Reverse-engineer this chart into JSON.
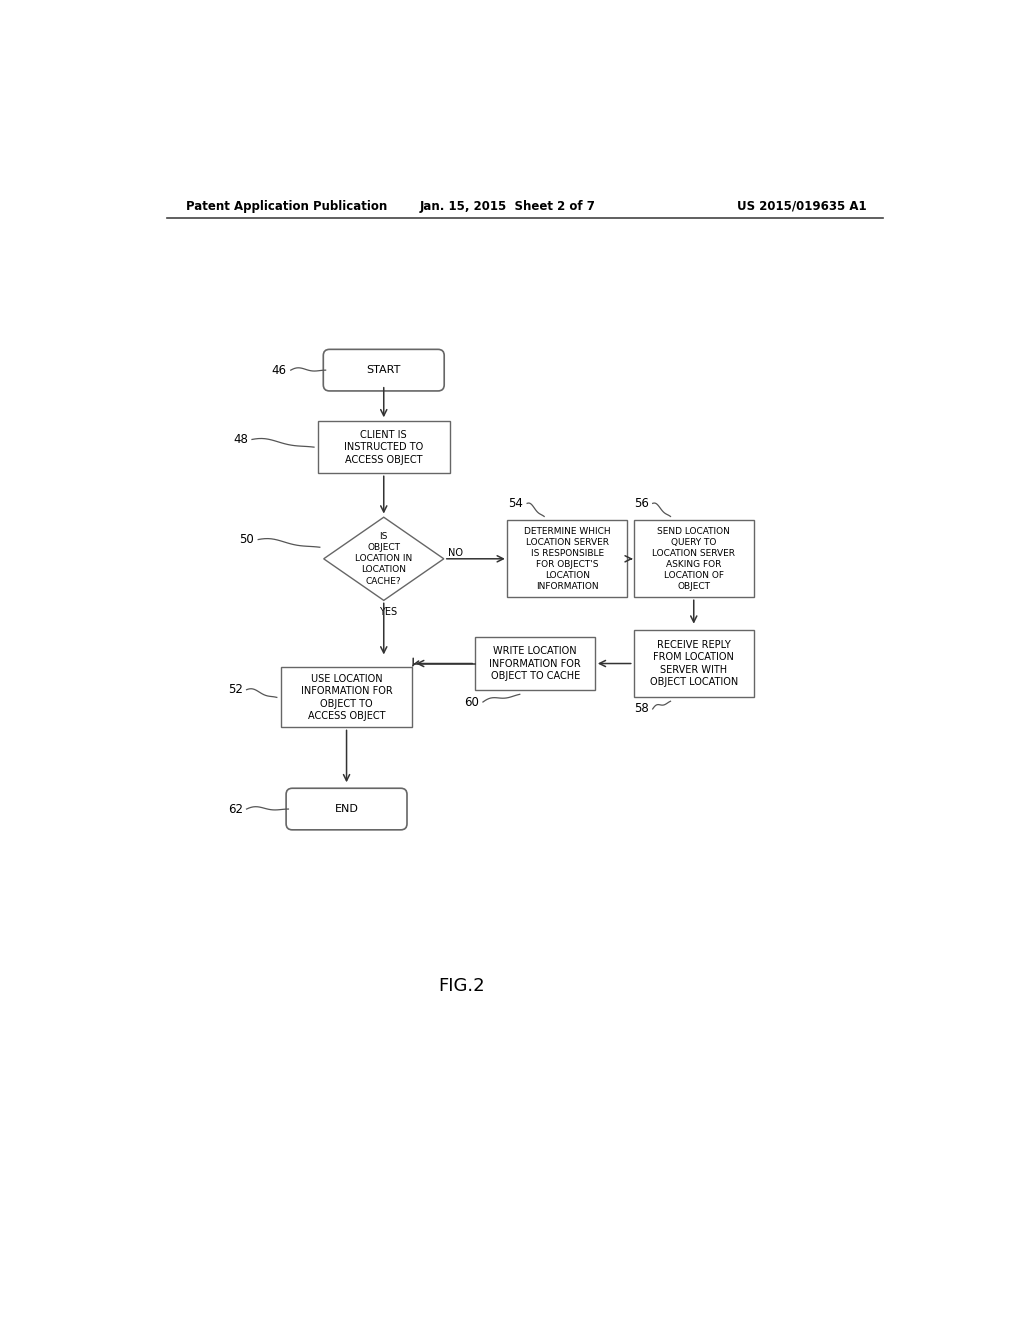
{
  "bg_color": "#ffffff",
  "text_color": "#000000",
  "border_color": "#666666",
  "header_left": "Patent Application Publication",
  "header_center": "Jan. 15, 2015  Sheet 2 of 7",
  "header_right": "US 2015/019635 A1",
  "fig_label": "FIG.2",
  "font_size_node": 7.0,
  "font_size_header": 8.5,
  "font_size_label": 8.5,
  "font_size_fig": 13,
  "font_size_arrow_label": 7.0
}
